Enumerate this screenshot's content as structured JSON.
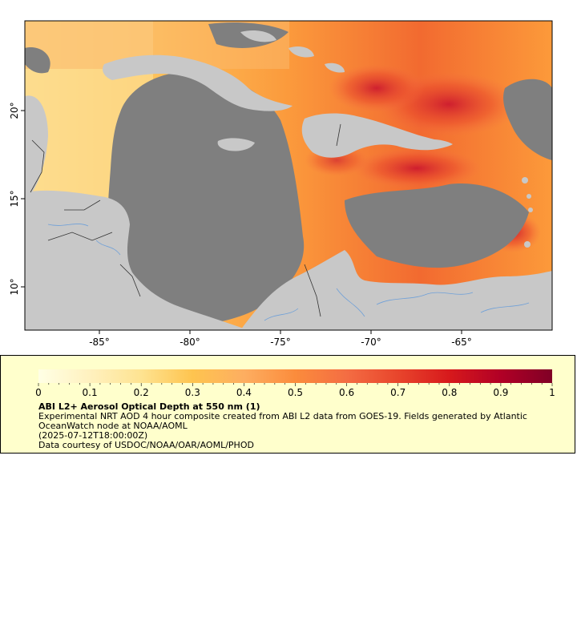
{
  "map": {
    "lon_ticks": [
      "-85°",
      "-80°",
      "-75°",
      "-70°",
      "-65°"
    ],
    "lat_ticks": [
      "20°",
      "15°",
      "10°"
    ],
    "colors": {
      "ocean_nodata": "#7f7f7f",
      "land": "#c8c8c8",
      "rivers": "#6fa0d8",
      "borders": "#333333"
    }
  },
  "legend": {
    "colorbar_ticks": [
      "0",
      "0.1",
      "0.2",
      "0.3",
      "0.4",
      "0.5",
      "0.6",
      "0.7",
      "0.8",
      "0.9",
      "1"
    ],
    "colorbar_stops": [
      "#ffffe5",
      "#fff1bf",
      "#fee391",
      "#fec44f",
      "#fdae61",
      "#fb8c3c",
      "#f46d43",
      "#e8452c",
      "#d7191c",
      "#b10026",
      "#800026"
    ],
    "title": "ABI L2+ Aerosol Optical Depth at 550 nm (1)",
    "description": "Experimental NRT AOD 4 hour composite created from ABI L2 data from GOES-19. Fields generated by Atlantic OceanWatch node at NOAA/AOML",
    "date": "(2025-07-12T18:00:00Z)",
    "credit": "Data courtesy of USDOC/NOAA/OAR/AOML/PHOD"
  }
}
